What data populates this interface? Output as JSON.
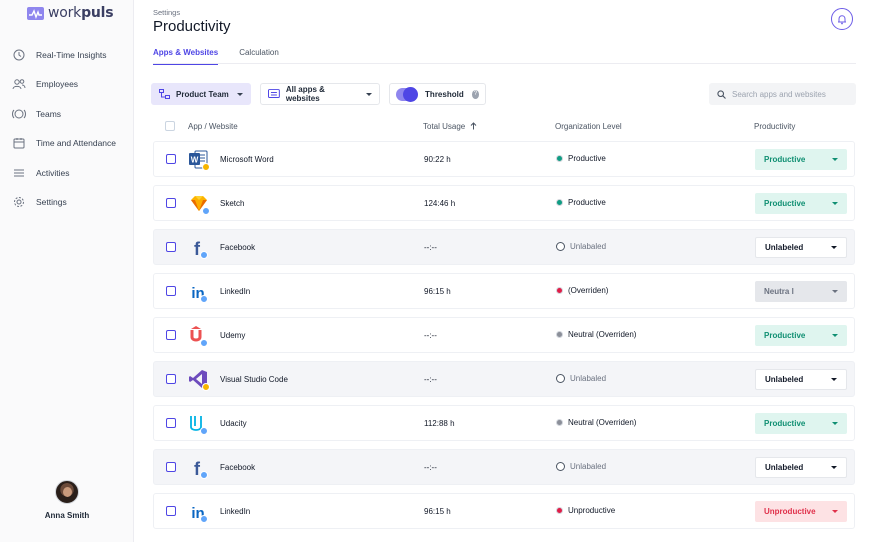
{
  "app": {
    "logo_text_light": "work",
    "logo_text_bold": "puls"
  },
  "sidebar": {
    "items": [
      {
        "label": "Real-Time Insights",
        "icon": "clock-icon"
      },
      {
        "label": "Employees",
        "icon": "people-icon"
      },
      {
        "label": "Teams",
        "icon": "teams-icon"
      },
      {
        "label": "Time and Attendance",
        "icon": "calendar-icon"
      },
      {
        "label": "Activities",
        "icon": "list-icon"
      },
      {
        "label": "Settings",
        "icon": "gear-icon"
      }
    ],
    "user": {
      "name": "Anna Smith"
    }
  },
  "header": {
    "breadcrumb": "Settings",
    "title": "Productivity",
    "tabs": [
      {
        "label": "Apps & Websites",
        "active": true
      },
      {
        "label": "Calculation",
        "active": false
      }
    ]
  },
  "toolbar": {
    "team_label": "Product Team",
    "apps_label": "All apps & websites",
    "threshold_label": "Threshold",
    "threshold_on": true,
    "search_placeholder": "Search apps and websites"
  },
  "table": {
    "columns": [
      "App / Website",
      "Total Usage",
      "Organization Level",
      "Productivity"
    ],
    "sort_icon": "arrow-up-icon",
    "rows": [
      {
        "name": "Microsoft Word",
        "icon": "word-icon",
        "badge": "desktop",
        "usage": "90:22 h",
        "org_level": "Productive",
        "org_status": "productive",
        "productivity": "Productive",
        "prod_status": "productive"
      },
      {
        "name": "Sketch",
        "icon": "sketch-icon",
        "badge": "web",
        "usage": "124:46 h",
        "org_level": "Productive",
        "org_status": "productive",
        "productivity": "Productive",
        "prod_status": "productive"
      },
      {
        "name": "Facebook",
        "icon": "facebook-icon",
        "badge": "web",
        "usage": "--:--",
        "org_level": "Unlabaled",
        "org_status": "unlabeled",
        "productivity": "Unlabeled",
        "prod_status": "unlabeled"
      },
      {
        "name": "LinkedIn",
        "icon": "linkedin-icon",
        "badge": "web",
        "usage": "96:15 h",
        "org_level": " (Overriden)",
        "org_status": "unproductive",
        "productivity": "Neutra l",
        "prod_status": "neutral"
      },
      {
        "name": "Udemy",
        "icon": "udemy-icon",
        "badge": "web",
        "usage": "--:--",
        "org_level": "Neutral  (Overriden)",
        "org_status": "neutral",
        "productivity": "Productive",
        "prod_status": "productive"
      },
      {
        "name": "Visual Studio Code",
        "icon": "vscode-icon",
        "badge": "desktop",
        "usage": "--:--",
        "org_level": "Unlabaled",
        "org_status": "unlabeled",
        "productivity": "Unlabeled",
        "prod_status": "unlabeled"
      },
      {
        "name": "Udacity",
        "icon": "udacity-icon",
        "badge": "web",
        "usage": "112:88 h",
        "org_level": "Neutral (Overriden)",
        "org_status": "neutral",
        "productivity": "Productive",
        "prod_status": "productive"
      },
      {
        "name": "Facebook",
        "icon": "facebook-icon",
        "badge": "web",
        "usage": "--:--",
        "org_level": "Unlabaled",
        "org_status": "unlabeled",
        "productivity": "Unlabeled",
        "prod_status": "unlabeled"
      },
      {
        "name": "LinkedIn",
        "icon": "linkedin-icon",
        "badge": "web",
        "usage": "96:15 h",
        "org_level": "Unproductive",
        "org_status": "unproductive",
        "productivity": "Unproductive",
        "prod_status": "unproductive"
      }
    ]
  },
  "colors": {
    "accent": "#4f46e5",
    "productive_dot": "#0f9d83",
    "neutral_dot": "#8b8f99",
    "unproductive_dot": "#e11d48",
    "productive_bg": "#dff5ef",
    "productive_fg": "#0f8f72",
    "neutral_bg": "#e5e7eb",
    "neutral_fg": "#6b7280",
    "unproductive_bg": "#fde2e4",
    "unproductive_fg": "#e0314b",
    "unlabeled_bg": "#ffffff",
    "unlabeled_fg": "#111827"
  }
}
